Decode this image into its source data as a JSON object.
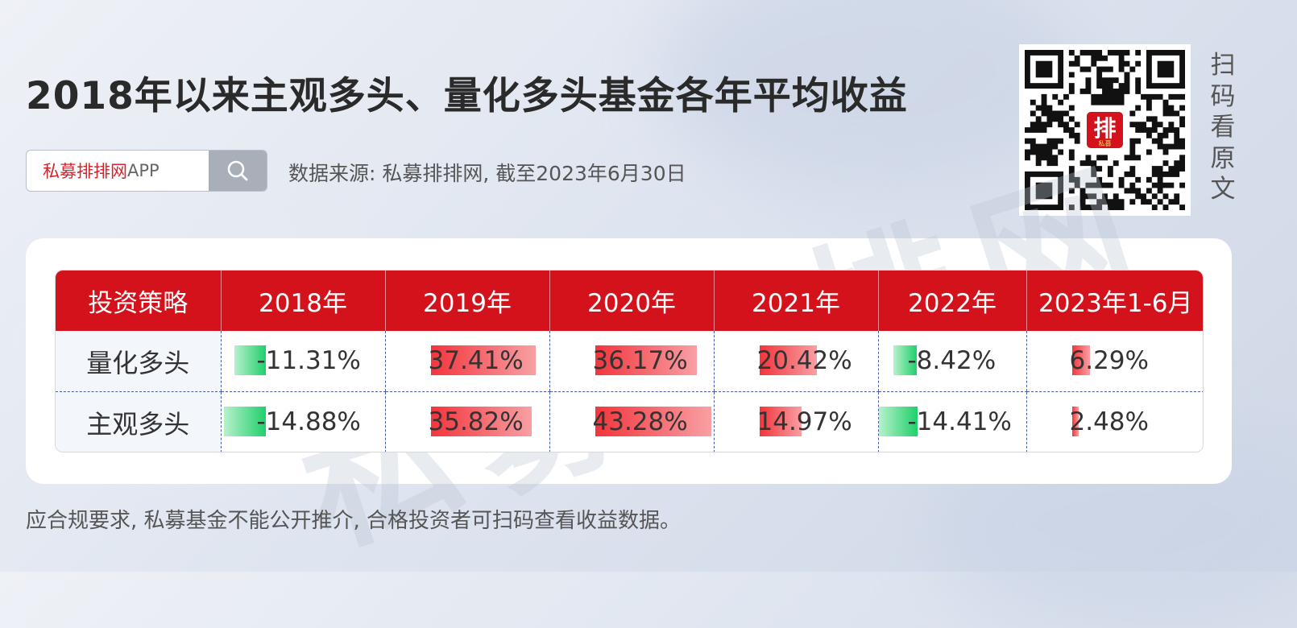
{
  "header": {
    "title": "2018年以来主观多头、量化多头基金各年平均收益",
    "search": {
      "brand": "私募排排网",
      "suffix": "APP",
      "icon": "search-icon"
    },
    "source": "数据来源: 私募排排网, 截至2023年6月30日"
  },
  "qr": {
    "label": "扫码看原文",
    "logo_text": "排",
    "logo_sub": "私募"
  },
  "watermark": "私募排排网",
  "footer": "应合规要求, 私募基金不能公开推介, 合格投资者可扫码查看收益数据。",
  "colors": {
    "header_red": "#d4121b",
    "positive": "#f3353c",
    "negative": "#1fd06b"
  },
  "chart_data": {
    "type": "table",
    "columns": [
      "投资策略",
      "2018年",
      "2019年",
      "2020年",
      "2021年",
      "2022年",
      "2023年1-6月"
    ],
    "rows": [
      {
        "strategy": "量化多头",
        "values": [
          -11.31,
          37.41,
          36.17,
          20.42,
          -8.42,
          6.29
        ],
        "labels": [
          "-11.31%",
          "37.41%",
          "36.17%",
          "20.42%",
          "-8.42%",
          "6.29%"
        ]
      },
      {
        "strategy": "主观多头",
        "values": [
          -14.88,
          35.82,
          43.28,
          14.97,
          -14.41,
          2.48
        ],
        "labels": [
          "-14.88%",
          "35.82%",
          "43.28%",
          "14.97%",
          "-14.41%",
          "2.48%"
        ]
      }
    ]
  }
}
